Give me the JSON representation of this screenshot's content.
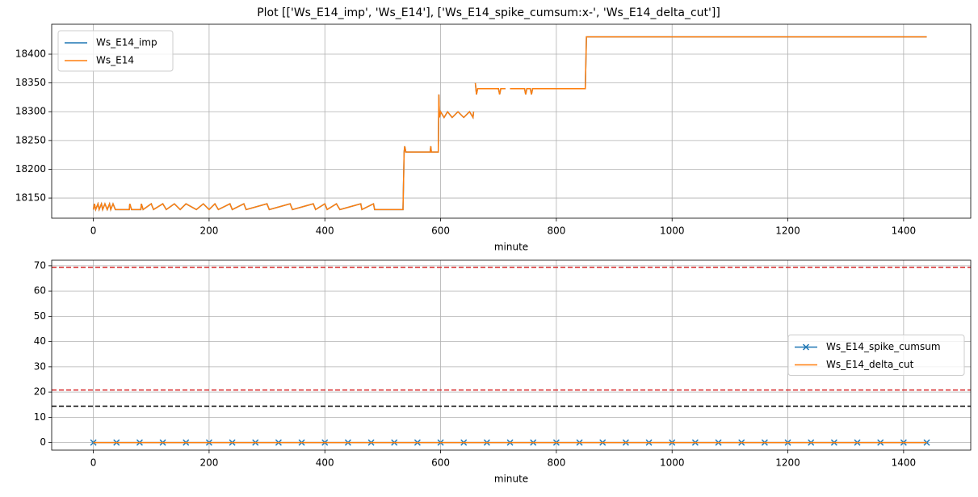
{
  "title": "Plot [['Ws_E14_imp', 'Ws_E14'], ['Ws_E14_spike_cumsum:x-', 'Ws_E14_delta_cut']]",
  "chart_data": [
    {
      "type": "line",
      "xlabel": "minute",
      "grid": true,
      "legend": "upper left",
      "xlim": [
        -72,
        1516
      ],
      "xticks": [
        0,
        200,
        400,
        600,
        800,
        1000,
        1200,
        1400
      ],
      "ylim": [
        18115,
        18452
      ],
      "yticks": [
        18150,
        18200,
        18250,
        18300,
        18350,
        18400
      ],
      "x": [
        0,
        2,
        4,
        8,
        10,
        14,
        16,
        20,
        24,
        28,
        30,
        34,
        38,
        62,
        63,
        66,
        82,
        83,
        86,
        100,
        104,
        120,
        126,
        140,
        150,
        160,
        178,
        190,
        200,
        210,
        216,
        236,
        240,
        260,
        264,
        300,
        304,
        340,
        344,
        380,
        384,
        400,
        404,
        420,
        426,
        462,
        464,
        484,
        486,
        535,
        537,
        538,
        540,
        582,
        583,
        584,
        596,
        597,
        598,
        600,
        606,
        612,
        620,
        630,
        640,
        650,
        656,
        657,
        658,
        660,
        662,
        664,
        700,
        702,
        704,
        712,
        716,
        720,
        745,
        747,
        749,
        755,
        757,
        759,
        850,
        852,
        1440
      ],
      "series": [
        {
          "name": "Ws_E14_imp",
          "color": "#1f77b4",
          "values": [
            18130,
            18140,
            18130,
            18140,
            18130,
            18140,
            18130,
            18140,
            18130,
            18140,
            18130,
            18140,
            18130,
            18130,
            18140,
            18130,
            18130,
            18140,
            18130,
            18140,
            18130,
            18140,
            18130,
            18140,
            18130,
            18140,
            18130,
            18140,
            18130,
            18140,
            18130,
            18140,
            18130,
            18140,
            18130,
            18140,
            18130,
            18140,
            18130,
            18140,
            18130,
            18140,
            18130,
            18140,
            18130,
            18140,
            18130,
            18140,
            18130,
            18130,
            18230,
            18240,
            18230,
            18230,
            18240,
            18230,
            18230,
            18330,
            18290,
            18300,
            18290,
            18300,
            18290,
            18300,
            18290,
            18300,
            18290,
            18300,
            null,
            18350,
            18330,
            18340,
            18340,
            18330,
            18340,
            18340,
            null,
            18340,
            18340,
            18330,
            18340,
            18340,
            18330,
            18340,
            18340,
            18430,
            18430
          ]
        },
        {
          "name": "Ws_E14",
          "color": "#ff7f0e",
          "values": [
            18130,
            18140,
            18130,
            18140,
            18130,
            18140,
            18130,
            18140,
            18130,
            18140,
            18130,
            18140,
            18130,
            18130,
            18140,
            18130,
            18130,
            18140,
            18130,
            18140,
            18130,
            18140,
            18130,
            18140,
            18130,
            18140,
            18130,
            18140,
            18130,
            18140,
            18130,
            18140,
            18130,
            18140,
            18130,
            18140,
            18130,
            18140,
            18130,
            18140,
            18130,
            18140,
            18130,
            18140,
            18130,
            18140,
            18130,
            18140,
            18130,
            18130,
            18230,
            18240,
            18230,
            18230,
            18240,
            18230,
            18230,
            18330,
            18290,
            18300,
            18290,
            18300,
            18290,
            18300,
            18290,
            18300,
            18290,
            18300,
            null,
            18350,
            18330,
            18340,
            18340,
            18330,
            18340,
            18340,
            null,
            18340,
            18340,
            18330,
            18340,
            18340,
            18330,
            18340,
            18340,
            18430,
            18430
          ]
        }
      ]
    },
    {
      "type": "line",
      "xlabel": "minute",
      "grid": true,
      "legend": "center right",
      "xlim": [
        -72,
        1516
      ],
      "xticks": [
        0,
        200,
        400,
        600,
        800,
        1000,
        1200,
        1400
      ],
      "ylim": [
        -3,
        72.2
      ],
      "yticks": [
        0,
        10,
        20,
        30,
        40,
        50,
        60,
        70
      ],
      "hlines": [
        {
          "value": 69.4,
          "color": "#d62728"
        },
        {
          "value": 20.8,
          "color": "#d62728"
        },
        {
          "value": 14.4,
          "color": "#000000"
        }
      ],
      "x": [
        0,
        40,
        80,
        120,
        160,
        200,
        240,
        280,
        320,
        360,
        400,
        440,
        480,
        520,
        560,
        600,
        640,
        680,
        720,
        760,
        800,
        840,
        880,
        920,
        960,
        1000,
        1040,
        1080,
        1120,
        1160,
        1200,
        1240,
        1280,
        1320,
        1360,
        1400,
        1440
      ],
      "series": [
        {
          "name": "Ws_E14_spike_cumsum",
          "color": "#1f77b4",
          "marker": "x",
          "values": [
            0,
            0,
            0,
            0,
            0,
            0,
            0,
            0,
            0,
            0,
            0,
            0,
            0,
            0,
            0,
            0,
            0,
            0,
            0,
            0,
            0,
            0,
            0,
            0,
            0,
            0,
            0,
            0,
            0,
            0,
            0,
            0,
            0,
            0,
            0,
            0,
            0
          ]
        },
        {
          "name": "Ws_E14_delta_cut",
          "color": "#ff7f0e",
          "values": [
            0,
            0,
            0,
            0,
            0,
            0,
            0,
            0,
            0,
            0,
            0,
            0,
            0,
            0,
            0,
            0,
            0,
            0,
            0,
            0,
            0,
            0,
            0,
            0,
            0,
            0,
            0,
            0,
            0,
            0,
            0,
            0,
            0,
            0,
            0,
            0,
            0
          ]
        }
      ]
    }
  ]
}
